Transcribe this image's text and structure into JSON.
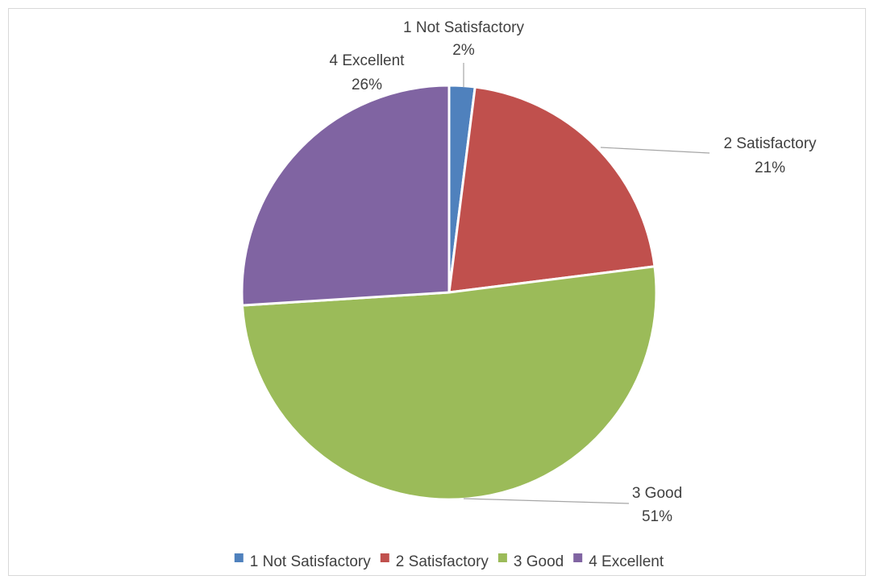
{
  "chart_data": {
    "type": "pie",
    "title": "",
    "slices": [
      {
        "label": "1 Not Satisfactory",
        "value": 2,
        "display": "2%",
        "color": "#4f81bd"
      },
      {
        "label": "2 Satisfactory",
        "value": 21,
        "display": "21%",
        "color": "#c0504d"
      },
      {
        "label": "3 Good",
        "value": 51,
        "display": "51%",
        "color": "#9bbb59"
      },
      {
        "label": "4 Excellent",
        "value": 26,
        "display": "26%",
        "color": "#8064a2"
      }
    ],
    "legend": {
      "position": "bottom"
    },
    "data_labels": "category-and-percent-outside-with-leader-lines"
  }
}
